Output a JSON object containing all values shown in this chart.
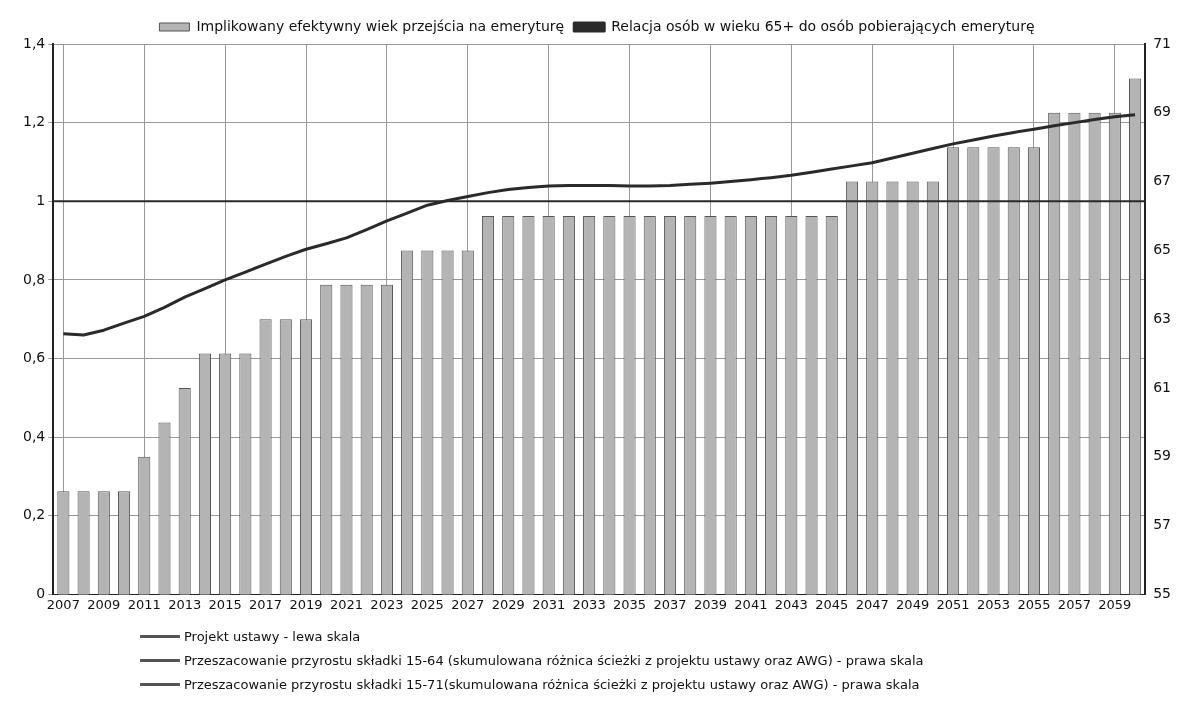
{
  "chart_data": {
    "type": "bar",
    "categories": [
      "2007",
      null,
      "2009",
      null,
      "2011",
      null,
      "2013",
      null,
      "2015",
      null,
      "2017",
      null,
      "2019",
      null,
      "2021",
      null,
      "2023",
      null,
      "2025",
      null,
      "2027",
      null,
      "2029",
      null,
      "2031",
      null,
      "2033",
      null,
      "2035",
      null,
      "2037",
      null,
      "2039",
      null,
      "2041",
      null,
      "2043",
      null,
      "2045",
      null,
      "2047",
      null,
      "2049",
      null,
      "2051",
      null,
      "2053",
      null,
      "2055",
      null,
      "2057",
      null,
      "2059",
      null
    ],
    "series": [
      {
        "name": "Implikowany efektywny wiek przejścia na emeryturę",
        "axis": "y2",
        "color": "#b4b4b4",
        "values": [
          58,
          58,
          58,
          58,
          59,
          60,
          61,
          62,
          62,
          62,
          63,
          63,
          63,
          64,
          64,
          64,
          64,
          65,
          65,
          65,
          65,
          66,
          66,
          66,
          66,
          66,
          66,
          66,
          66,
          66,
          66,
          66,
          66,
          66,
          66,
          66,
          66,
          66,
          66,
          67,
          67,
          67,
          67,
          67,
          68,
          68,
          68,
          68,
          68,
          69,
          69,
          69,
          69,
          70
        ]
      },
      {
        "name": "Relacja osób w wieku 65+ do osób pobierających emeryturę",
        "type": "line",
        "color": "#2a2a2a",
        "values": [
          0.663,
          0.66,
          0.672,
          0.69,
          0.707,
          0.73,
          0.756,
          0.778,
          0.8,
          0.82,
          0.84,
          0.86,
          0.878,
          0.892,
          0.907,
          0.928,
          0.95,
          0.97,
          0.99,
          1.002,
          1.012,
          1.022,
          1.03,
          1.035,
          1.039,
          1.04,
          1.04,
          1.04,
          1.039,
          1.039,
          1.04,
          1.043,
          1.046,
          1.05,
          1.055,
          1.06,
          1.066,
          1.074,
          1.082,
          1.09,
          1.098,
          1.11,
          1.122,
          1.134,
          1.146,
          1.156,
          1.166,
          1.175,
          1.183,
          1.192,
          1.2,
          1.208,
          1.215,
          1.22
        ]
      }
    ],
    "ylim": [
      0,
      1.4
    ],
    "yticks": [
      0,
      {
        "value": 0.2,
        "label": "0,2"
      },
      {
        "value": 0.4,
        "label": "0,4"
      },
      {
        "value": 0.6,
        "label": "0,6"
      },
      {
        "value": 0.8,
        "label": "0,8"
      },
      1,
      {
        "value": 1.2,
        "label": "1,2"
      },
      {
        "value": 1.4,
        "label": "1,4"
      }
    ],
    "y2lim": [
      55,
      71
    ],
    "y2ticks": [
      55,
      57,
      59,
      61,
      63,
      65,
      67,
      69,
      71
    ],
    "ref_lines": [
      {
        "axis": "y",
        "value": 1,
        "color": "#2a2a2a"
      }
    ],
    "grid": true,
    "legend": "top",
    "marker": "none",
    "line_style": "solid",
    "annotations": [
      "Projekt ustawy - lewa skala",
      "Przeszacowanie przyrostu składki 15-64 (skumulowana różnica ścieżki z projektu ustawy oraz AWG) - prawa skala",
      "Przeszacowanie przyrostu składki 15-71(skumulowana różnica ścieżki z projektu ustawy oraz AWG) - prawa skala"
    ]
  }
}
